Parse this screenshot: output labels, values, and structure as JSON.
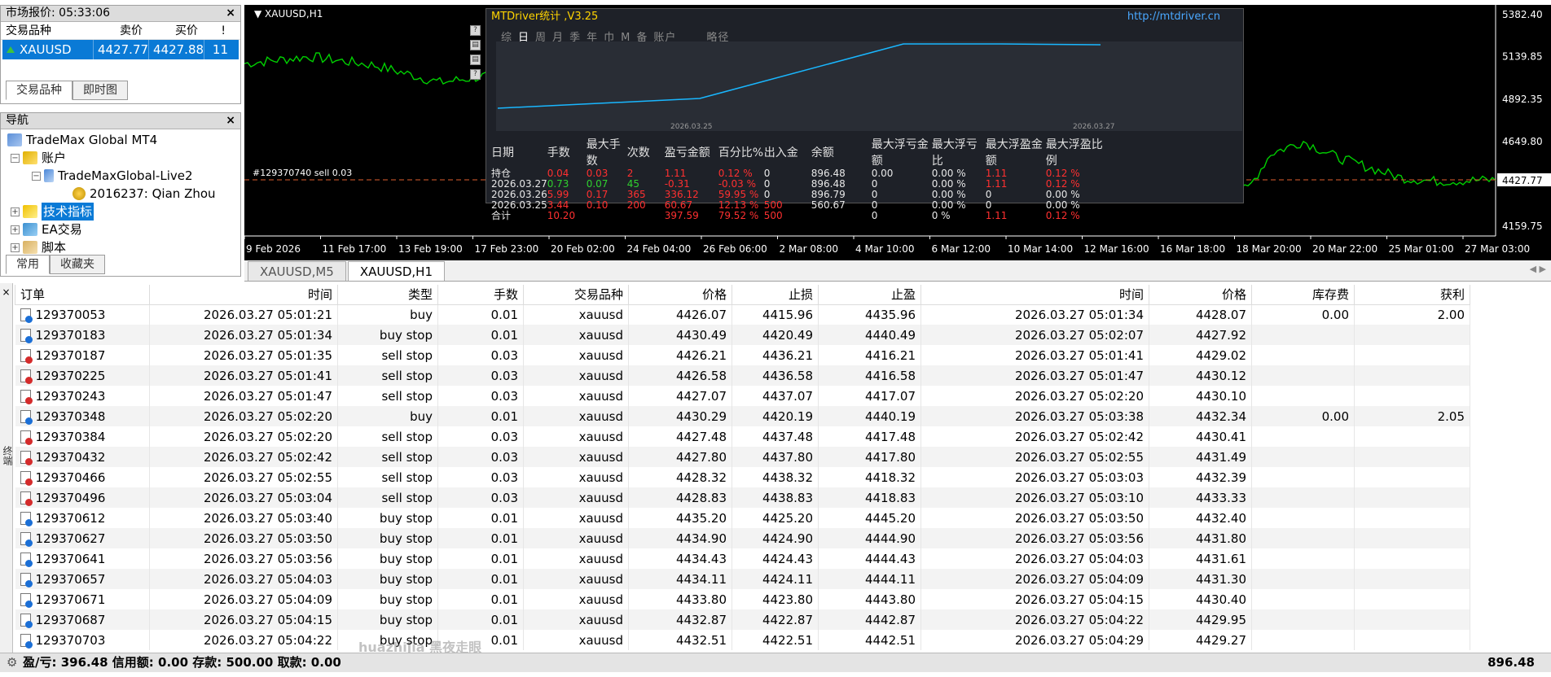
{
  "market": {
    "title": "市场报价: 05:33:06",
    "headers": [
      "交易品种",
      "卖价",
      "买价",
      "!"
    ],
    "row": {
      "symbol": "XAUUSD",
      "bid": "4427.77",
      "ask": "4427.88",
      "spread": "11"
    },
    "tabs": [
      "交易品种",
      "即时图"
    ]
  },
  "navigator": {
    "title": "导航",
    "items": [
      "TradeMax Global MT4",
      "账户",
      "TradeMaxGlobal-Live2",
      "2016237: Qian Zhou",
      "技术指标",
      "EA交易",
      "脚本"
    ],
    "tabs": [
      "常用",
      "收藏夹"
    ]
  },
  "chart": {
    "symbol": "XAUUSD,H1",
    "price_labels": [
      "5382.40",
      "5139.85",
      "4892.35",
      "4649.80",
      "4427.77",
      "4159.75"
    ],
    "current_price": "4427.77",
    "date_labels": [
      "9 Feb 2026",
      "11 Feb 17:00",
      "13 Feb 19:00",
      "17 Feb 23:00",
      "20 Feb 02:00",
      "24 Feb 04:00",
      "26 Feb 06:00",
      "2 Mar 08:00",
      "4 Mar 10:00",
      "6 Mar 12:00",
      "10 Mar 14:00",
      "12 Mar 16:00",
      "16 Mar 18:00",
      "18 Mar 20:00",
      "20 Mar 22:00",
      "25 Mar 01:00",
      "27 Mar 03:00"
    ],
    "order_label": "#129370740 sell 0.03",
    "tabs": [
      "XAUUSD,M5",
      "XAUUSD,H1"
    ],
    "colors": {
      "up": "#00d000",
      "bg": "#000000",
      "line": "#e06030"
    }
  },
  "mtdriver": {
    "title": "MTDriver统计 ,V3.25",
    "url": "http://mtdriver.cn",
    "periods": [
      "综",
      "日",
      "周",
      "月",
      "季",
      "年",
      "巾",
      "M",
      "备",
      "账户",
      "略径"
    ],
    "graph_start": "2026.03.25",
    "graph_end": "2026.03.27",
    "columns": [
      "日期",
      "手数",
      "最大手数",
      "次数",
      "盈亏金额",
      "百分比%",
      "出入金",
      "余额",
      "最大浮亏金额",
      "最大浮亏比",
      "最大浮盈金额",
      "最大浮盈比例"
    ],
    "rows": [
      [
        "持仓",
        "0.04",
        "0.03",
        "2",
        "1.11",
        "0.12 %",
        "0",
        "896.48",
        "0.00",
        "0.00 %",
        "1.11",
        "0.12 %"
      ],
      [
        "2026.03.27",
        "0.73",
        "0.07",
        "45",
        "-0.31",
        "-0.03 %",
        "0",
        "896.48",
        "0",
        "0.00 %",
        "1.11",
        "0.12 %"
      ],
      [
        "2026.03.26",
        "5.99",
        "0.17",
        "365",
        "336.12",
        "59.95 %",
        "0",
        "896.79",
        "0",
        "0.00 %",
        "0",
        "0.00 %"
      ],
      [
        "2026.03.25",
        "3.44",
        "0.10",
        "200",
        "60.67",
        "12.13 %",
        "500",
        "560.67",
        "0",
        "0.00 %",
        "0",
        "0.00 %"
      ],
      [
        "合计",
        "10.20",
        "",
        "",
        "397.59",
        "79.52 %",
        "500",
        "",
        "0",
        "0 %",
        "1.11",
        "0.12 %"
      ]
    ]
  },
  "orders": {
    "headers": [
      "订单",
      "时间",
      "类型",
      "手数",
      "交易品种",
      "价格",
      "止损",
      "止盈",
      "时间",
      "价格",
      "库存费",
      "获利"
    ],
    "rows": [
      [
        "129370053",
        "2026.03.27 05:01:21",
        "buy",
        "0.01",
        "xauusd",
        "4426.07",
        "4415.96",
        "4435.96",
        "2026.03.27 05:01:34",
        "4428.07",
        "0.00",
        "2.00"
      ],
      [
        "129370183",
        "2026.03.27 05:01:34",
        "buy stop",
        "0.01",
        "xauusd",
        "4430.49",
        "4420.49",
        "4440.49",
        "2026.03.27 05:02:07",
        "4427.92",
        "",
        ""
      ],
      [
        "129370187",
        "2026.03.27 05:01:35",
        "sell stop",
        "0.03",
        "xauusd",
        "4426.21",
        "4436.21",
        "4416.21",
        "2026.03.27 05:01:41",
        "4429.02",
        "",
        ""
      ],
      [
        "129370225",
        "2026.03.27 05:01:41",
        "sell stop",
        "0.03",
        "xauusd",
        "4426.58",
        "4436.58",
        "4416.58",
        "2026.03.27 05:01:47",
        "4430.12",
        "",
        ""
      ],
      [
        "129370243",
        "2026.03.27 05:01:47",
        "sell stop",
        "0.03",
        "xauusd",
        "4427.07",
        "4437.07",
        "4417.07",
        "2026.03.27 05:02:20",
        "4430.10",
        "",
        ""
      ],
      [
        "129370348",
        "2026.03.27 05:02:20",
        "buy",
        "0.01",
        "xauusd",
        "4430.29",
        "4420.19",
        "4440.19",
        "2026.03.27 05:03:38",
        "4432.34",
        "0.00",
        "2.05"
      ],
      [
        "129370384",
        "2026.03.27 05:02:20",
        "sell stop",
        "0.03",
        "xauusd",
        "4427.48",
        "4437.48",
        "4417.48",
        "2026.03.27 05:02:42",
        "4430.41",
        "",
        ""
      ],
      [
        "129370432",
        "2026.03.27 05:02:42",
        "sell stop",
        "0.03",
        "xauusd",
        "4427.80",
        "4437.80",
        "4417.80",
        "2026.03.27 05:02:55",
        "4431.49",
        "",
        ""
      ],
      [
        "129370466",
        "2026.03.27 05:02:55",
        "sell stop",
        "0.03",
        "xauusd",
        "4428.32",
        "4438.32",
        "4418.32",
        "2026.03.27 05:03:03",
        "4432.39",
        "",
        ""
      ],
      [
        "129370496",
        "2026.03.27 05:03:04",
        "sell stop",
        "0.03",
        "xauusd",
        "4428.83",
        "4438.83",
        "4418.83",
        "2026.03.27 05:03:10",
        "4433.33",
        "",
        ""
      ],
      [
        "129370612",
        "2026.03.27 05:03:40",
        "buy stop",
        "0.01",
        "xauusd",
        "4435.20",
        "4425.20",
        "4445.20",
        "2026.03.27 05:03:50",
        "4432.40",
        "",
        ""
      ],
      [
        "129370627",
        "2026.03.27 05:03:50",
        "buy stop",
        "0.01",
        "xauusd",
        "4434.90",
        "4424.90",
        "4444.90",
        "2026.03.27 05:03:56",
        "4431.80",
        "",
        ""
      ],
      [
        "129370641",
        "2026.03.27 05:03:56",
        "buy stop",
        "0.01",
        "xauusd",
        "4434.43",
        "4424.43",
        "4444.43",
        "2026.03.27 05:04:03",
        "4431.61",
        "",
        ""
      ],
      [
        "129370657",
        "2026.03.27 05:04:03",
        "buy stop",
        "0.01",
        "xauusd",
        "4434.11",
        "4424.11",
        "4444.11",
        "2026.03.27 05:04:09",
        "4431.30",
        "",
        ""
      ],
      [
        "129370671",
        "2026.03.27 05:04:09",
        "buy stop",
        "0.01",
        "xauusd",
        "4433.80",
        "4423.80",
        "4443.80",
        "2026.03.27 05:04:15",
        "4430.40",
        "",
        ""
      ],
      [
        "129370687",
        "2026.03.27 05:04:15",
        "buy stop",
        "0.01",
        "xauusd",
        "4432.87",
        "4422.87",
        "4442.87",
        "2026.03.27 05:04:22",
        "4429.95",
        "",
        ""
      ],
      [
        "129370703",
        "2026.03.27 05:04:22",
        "buy stop",
        "0.01",
        "xauusd",
        "4432.51",
        "4422.51",
        "4442.51",
        "2026.03.27 05:04:29",
        "4429.27",
        "",
        ""
      ]
    ]
  },
  "status": {
    "text": "盈/亏: 396.48  信用额: 0.00  存款: 500.00  取款: 0.00",
    "balance": "896.48",
    "watermark": "huazhijia 黑夜走眼",
    "side_label": "终端"
  }
}
